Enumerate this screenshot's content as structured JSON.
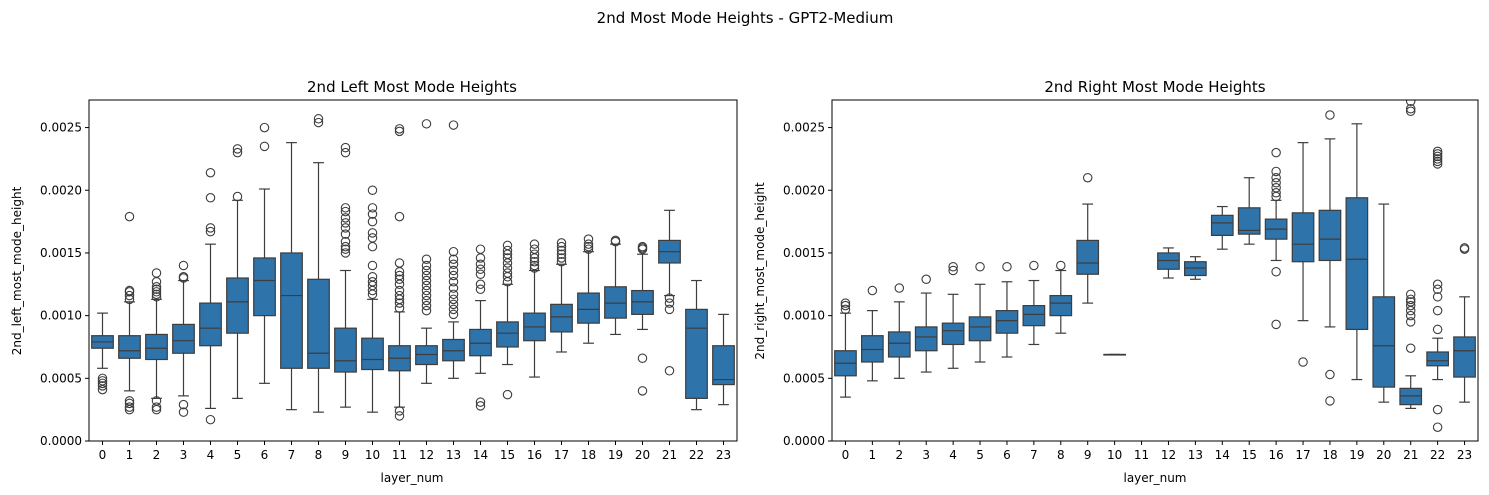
{
  "figure": {
    "suptitle": "2nd Most Mode Heights - GPT2-Medium"
  },
  "style": {
    "box_fill": "#2e73aa",
    "line_color": "#3d3d3d"
  },
  "chart_data": [
    {
      "type": "box",
      "title": "2nd Left Most Mode Heights",
      "xlabel": "layer_num",
      "ylabel": "2nd_left_most_mode_height",
      "ylim": [
        0,
        0.00272
      ],
      "yticks": [
        0,
        0.0005,
        0.001,
        0.0015,
        0.002,
        0.0025
      ],
      "ytick_labels": [
        "0.0000",
        "0.0005",
        "0.0010",
        "0.0015",
        "0.0020",
        "0.0025"
      ],
      "categories": [
        "0",
        "1",
        "2",
        "3",
        "4",
        "5",
        "6",
        "7",
        "8",
        "9",
        "10",
        "11",
        "12",
        "13",
        "14",
        "15",
        "16",
        "17",
        "18",
        "19",
        "20",
        "21",
        "22",
        "23"
      ],
      "boxes": [
        {
          "q1": 0.00074,
          "med": 0.00079,
          "q3": 0.00084,
          "wlo": 0.00058,
          "whi": 0.00102,
          "out": [
            0.00041,
            0.00044,
            0.00046,
            0.00048,
            0.0005
          ]
        },
        {
          "q1": 0.00066,
          "med": 0.00072,
          "q3": 0.00084,
          "wlo": 0.0004,
          "whi": 0.00111,
          "out": [
            0.00025,
            0.00027,
            0.0003,
            0.00032,
            0.00113,
            0.00116,
            0.00119,
            0.0012,
            0.00179
          ]
        },
        {
          "q1": 0.00065,
          "med": 0.00074,
          "q3": 0.00085,
          "wlo": 0.00034,
          "whi": 0.00113,
          "out": [
            0.00025,
            0.00027,
            0.00032,
            0.00115,
            0.00117,
            0.00119,
            0.00121,
            0.00123,
            0.00127,
            0.00134
          ]
        },
        {
          "q1": 0.0007,
          "med": 0.0008,
          "q3": 0.00093,
          "wlo": 0.00036,
          "whi": 0.00128,
          "out": [
            0.00023,
            0.00029,
            0.0013,
            0.00131,
            0.0014
          ]
        },
        {
          "q1": 0.00076,
          "med": 0.0009,
          "q3": 0.0011,
          "wlo": 0.00026,
          "whi": 0.00157,
          "out": [
            0.00017,
            0.00167,
            0.0017,
            0.00194,
            0.00214
          ]
        },
        {
          "q1": 0.00086,
          "med": 0.00111,
          "q3": 0.0013,
          "wlo": 0.00034,
          "whi": 0.00192,
          "out": [
            0.00195,
            0.0023,
            0.00233
          ]
        },
        {
          "q1": 0.001,
          "med": 0.00128,
          "q3": 0.00146,
          "wlo": 0.00046,
          "whi": 0.00201,
          "out": [
            0.00235,
            0.0025
          ]
        },
        {
          "q1": 0.00058,
          "med": 0.00116,
          "q3": 0.0015,
          "wlo": 0.00025,
          "whi": 0.00238,
          "out": []
        },
        {
          "q1": 0.00058,
          "med": 0.0007,
          "q3": 0.00129,
          "wlo": 0.00023,
          "whi": 0.00222,
          "out": [
            0.00254,
            0.00257
          ]
        },
        {
          "q1": 0.00055,
          "med": 0.00064,
          "q3": 0.0009,
          "wlo": 0.00027,
          "whi": 0.00136,
          "out": [
            0.0015,
            0.00153,
            0.00155,
            0.00159,
            0.00165,
            0.0017,
            0.00174,
            0.00178,
            0.00183,
            0.00186,
            0.0023,
            0.00234
          ]
        },
        {
          "q1": 0.00057,
          "med": 0.00065,
          "q3": 0.00082,
          "wlo": 0.00023,
          "whi": 0.00113,
          "out": [
            0.00117,
            0.0012,
            0.00124,
            0.00127,
            0.00131,
            0.0014,
            0.00155,
            0.00162,
            0.00166,
            0.00175,
            0.00181,
            0.00186,
            0.002
          ]
        },
        {
          "q1": 0.00056,
          "med": 0.00066,
          "q3": 0.00076,
          "wlo": 0.00027,
          "whi": 0.00103,
          "out": [
            0.0002,
            0.00024,
            0.00106,
            0.0011,
            0.00113,
            0.00116,
            0.0012,
            0.00125,
            0.00129,
            0.00132,
            0.00135,
            0.00142,
            0.00179,
            0.00247,
            0.00249
          ]
        },
        {
          "q1": 0.00061,
          "med": 0.00069,
          "q3": 0.00076,
          "wlo": 0.00046,
          "whi": 0.0009,
          "out": [
            0.00104,
            0.00108,
            0.00112,
            0.00116,
            0.0012,
            0.00124,
            0.00128,
            0.00132,
            0.00136,
            0.0014,
            0.00145,
            0.00253
          ]
        },
        {
          "q1": 0.00064,
          "med": 0.00072,
          "q3": 0.00081,
          "wlo": 0.0005,
          "whi": 0.00095,
          "out": [
            0.00101,
            0.00105,
            0.00109,
            0.00113,
            0.00117,
            0.00122,
            0.00127,
            0.00132,
            0.00136,
            0.00141,
            0.00145,
            0.00151,
            0.00252
          ]
        },
        {
          "q1": 0.00068,
          "med": 0.00078,
          "q3": 0.00089,
          "wlo": 0.00054,
          "whi": 0.00112,
          "out": [
            0.00028,
            0.00031,
            0.00121,
            0.00125,
            0.00133,
            0.00137,
            0.00141,
            0.00146,
            0.00153
          ]
        },
        {
          "q1": 0.00075,
          "med": 0.00086,
          "q3": 0.00095,
          "wlo": 0.00061,
          "whi": 0.00125,
          "out": [
            0.00037,
            0.00127,
            0.00131,
            0.00134,
            0.00138,
            0.00142,
            0.00146,
            0.00149,
            0.00152,
            0.00156
          ]
        },
        {
          "q1": 0.0008,
          "med": 0.00091,
          "q3": 0.00102,
          "wlo": 0.00051,
          "whi": 0.00136,
          "out": [
            0.00138,
            0.0014,
            0.00143,
            0.00146,
            0.00149,
            0.00153,
            0.00157
          ]
        },
        {
          "q1": 0.00087,
          "med": 0.00099,
          "q3": 0.00109,
          "wlo": 0.00071,
          "whi": 0.00141,
          "out": [
            0.00143,
            0.00146,
            0.00149,
            0.00152,
            0.00155,
            0.00158
          ]
        },
        {
          "q1": 0.00094,
          "med": 0.00105,
          "q3": 0.00118,
          "wlo": 0.00078,
          "whi": 0.00151,
          "out": [
            0.00153,
            0.00155,
            0.00157,
            0.00161
          ]
        },
        {
          "q1": 0.00098,
          "med": 0.0011,
          "q3": 0.00123,
          "wlo": 0.00085,
          "whi": 0.00157,
          "out": [
            0.00159,
            0.0016
          ]
        },
        {
          "q1": 0.00101,
          "med": 0.00111,
          "q3": 0.0012,
          "wlo": 0.00089,
          "whi": 0.00149,
          "out": [
            0.0004,
            0.00066,
            0.00153,
            0.00154,
            0.00155
          ]
        },
        {
          "q1": 0.00142,
          "med": 0.00151,
          "q3": 0.0016,
          "wlo": 0.00116,
          "whi": 0.00184,
          "out": [
            0.00056,
            0.00105,
            0.0011,
            0.00114
          ]
        },
        {
          "q1": 0.00034,
          "med": 0.0009,
          "q3": 0.00105,
          "wlo": 0.00025,
          "whi": 0.00128,
          "out": []
        },
        {
          "q1": 0.00045,
          "med": 0.00049,
          "q3": 0.00076,
          "wlo": 0.00029,
          "whi": 0.00101,
          "out": []
        }
      ]
    },
    {
      "type": "box",
      "title": "2nd Right Most Mode Heights",
      "xlabel": "layer_num",
      "ylabel": "2nd_right_most_mode_height",
      "ylim": [
        0,
        0.00272
      ],
      "yticks": [
        0,
        0.0005,
        0.001,
        0.0015,
        0.002,
        0.0025
      ],
      "ytick_labels": [
        "0.0000",
        "0.0005",
        "0.0010",
        "0.0015",
        "0.0020",
        "0.0025"
      ],
      "categories": [
        "0",
        "1",
        "2",
        "3",
        "4",
        "5",
        "6",
        "7",
        "8",
        "9",
        "10",
        "11",
        "12",
        "13",
        "14",
        "15",
        "16",
        "17",
        "18",
        "19",
        "20",
        "21",
        "22",
        "23"
      ],
      "boxes": [
        {
          "q1": 0.00052,
          "med": 0.00062,
          "q3": 0.00072,
          "wlo": 0.00035,
          "whi": 0.00102,
          "out": [
            0.00105,
            0.00108,
            0.0011
          ]
        },
        {
          "q1": 0.00063,
          "med": 0.00073,
          "q3": 0.00084,
          "wlo": 0.00048,
          "whi": 0.00104,
          "out": [
            0.0012
          ]
        },
        {
          "q1": 0.00067,
          "med": 0.00078,
          "q3": 0.00087,
          "wlo": 0.0005,
          "whi": 0.00111,
          "out": [
            0.00122
          ]
        },
        {
          "q1": 0.00072,
          "med": 0.00083,
          "q3": 0.00091,
          "wlo": 0.00055,
          "whi": 0.00118,
          "out": [
            0.00129
          ]
        },
        {
          "q1": 0.00077,
          "med": 0.00088,
          "q3": 0.00094,
          "wlo": 0.00058,
          "whi": 0.00117,
          "out": [
            0.00136,
            0.00139
          ]
        },
        {
          "q1": 0.0008,
          "med": 0.00091,
          "q3": 0.00099,
          "wlo": 0.00063,
          "whi": 0.00125,
          "out": [
            0.00139
          ]
        },
        {
          "q1": 0.00086,
          "med": 0.00096,
          "q3": 0.00104,
          "wlo": 0.00067,
          "whi": 0.00127,
          "out": [
            0.00139
          ]
        },
        {
          "q1": 0.00092,
          "med": 0.00101,
          "q3": 0.00108,
          "wlo": 0.00077,
          "whi": 0.00128,
          "out": [
            0.0014
          ]
        },
        {
          "q1": 0.001,
          "med": 0.0011,
          "q3": 0.00116,
          "wlo": 0.00086,
          "whi": 0.00136,
          "out": [
            0.0014
          ]
        },
        {
          "q1": 0.00133,
          "med": 0.00142,
          "q3": 0.0016,
          "wlo": 0.0011,
          "whi": 0.00189,
          "out": [
            0.0021
          ]
        },
        {
          "q1": 0.00069,
          "med": 0.00069,
          "q3": 0.00069,
          "wlo": 0.00069,
          "whi": 0.00069,
          "out": []
        },
        null,
        {
          "q1": 0.00137,
          "med": 0.00144,
          "q3": 0.0015,
          "wlo": 0.0013,
          "whi": 0.00154,
          "out": []
        },
        {
          "q1": 0.00132,
          "med": 0.00138,
          "q3": 0.00143,
          "wlo": 0.00129,
          "whi": 0.00147,
          "out": []
        },
        {
          "q1": 0.00164,
          "med": 0.00174,
          "q3": 0.0018,
          "wlo": 0.00153,
          "whi": 0.00187,
          "out": []
        },
        {
          "q1": 0.00165,
          "med": 0.00168,
          "q3": 0.00186,
          "wlo": 0.00157,
          "whi": 0.0021,
          "out": []
        },
        {
          "q1": 0.00161,
          "med": 0.00169,
          "q3": 0.00177,
          "wlo": 0.00144,
          "whi": 0.00192,
          "out": [
            0.00093,
            0.00135,
            0.00195,
            0.00198,
            0.00202,
            0.00206,
            0.0021,
            0.00215,
            0.0023
          ]
        },
        {
          "q1": 0.00143,
          "med": 0.00157,
          "q3": 0.00182,
          "wlo": 0.00096,
          "whi": 0.00238,
          "out": [
            0.00063
          ]
        },
        {
          "q1": 0.00144,
          "med": 0.00161,
          "q3": 0.00184,
          "wlo": 0.00091,
          "whi": 0.00241,
          "out": [
            0.00032,
            0.00053,
            0.0026
          ]
        },
        {
          "q1": 0.00089,
          "med": 0.00145,
          "q3": 0.00194,
          "wlo": 0.00049,
          "whi": 0.00253,
          "out": []
        },
        {
          "q1": 0.00043,
          "med": 0.00076,
          "q3": 0.00115,
          "wlo": 0.00031,
          "whi": 0.00189,
          "out": []
        },
        {
          "q1": 0.00029,
          "med": 0.00036,
          "q3": 0.00042,
          "wlo": 0.00026,
          "whi": 0.00052,
          "out": [
            0.00074,
            0.00095,
            0.001,
            0.00104,
            0.00108,
            0.00111,
            0.00113,
            0.00117,
            0.00263,
            0.00265,
            0.00271
          ]
        },
        {
          "q1": 0.0006,
          "med": 0.00064,
          "q3": 0.00071,
          "wlo": 0.00049,
          "whi": 0.00082,
          "out": [
            0.00011,
            0.00025,
            0.00089,
            0.00104,
            0.00115,
            0.00121,
            0.00125,
            0.00221,
            0.00223,
            0.00225,
            0.00227,
            0.00229,
            0.00231
          ]
        },
        {
          "q1": 0.00051,
          "med": 0.00072,
          "q3": 0.00083,
          "wlo": 0.00031,
          "whi": 0.00115,
          "out": [
            0.00153,
            0.00154
          ]
        }
      ]
    }
  ]
}
